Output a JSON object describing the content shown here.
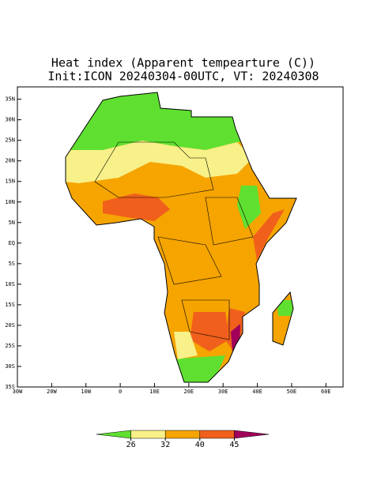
{
  "title": {
    "line1": "Heat index (Apparent tempearture (C))",
    "line2": "Init:ICON 20240304-00UTC, VT: 20240308"
  },
  "map": {
    "xlim": [
      -30,
      65
    ],
    "ylim": [
      -35,
      38
    ],
    "xticks": [
      {
        "value": -30,
        "label": "30W"
      },
      {
        "value": -20,
        "label": "20W"
      },
      {
        "value": -10,
        "label": "10W"
      },
      0,
      {
        "value": 10,
        "label": "10E"
      },
      {
        "value": 20,
        "label": "20E"
      },
      {
        "value": 30,
        "label": "30E"
      },
      {
        "value": 40,
        "label": "40E"
      },
      {
        "value": 50,
        "label": "50E"
      },
      {
        "value": 60,
        "label": "60E"
      }
    ],
    "yticks": [
      {
        "value": 35,
        "label": "35N"
      },
      {
        "value": 30,
        "label": "30N"
      },
      {
        "value": 25,
        "label": "25N"
      },
      {
        "value": 20,
        "label": "20N"
      },
      {
        "value": 15,
        "label": "15N"
      },
      {
        "value": 10,
        "label": "10N"
      },
      {
        "value": 5,
        "label": "5N"
      },
      {
        "value": 0,
        "label": "EQ"
      },
      {
        "value": -5,
        "label": "5S"
      },
      {
        "value": -10,
        "label": "10S"
      },
      {
        "value": -15,
        "label": "15S"
      },
      {
        "value": -20,
        "label": "20S"
      },
      {
        "value": -25,
        "label": "25S"
      },
      {
        "value": -30,
        "label": "30S"
      },
      {
        "value": -35,
        "label": "35S"
      }
    ]
  },
  "colorbar": {
    "ticks": [
      26,
      32,
      40,
      45
    ],
    "colors": [
      "#5fe030",
      "#f8f088",
      "#f5a400",
      "#f0601c",
      "#a0005a"
    ]
  }
}
